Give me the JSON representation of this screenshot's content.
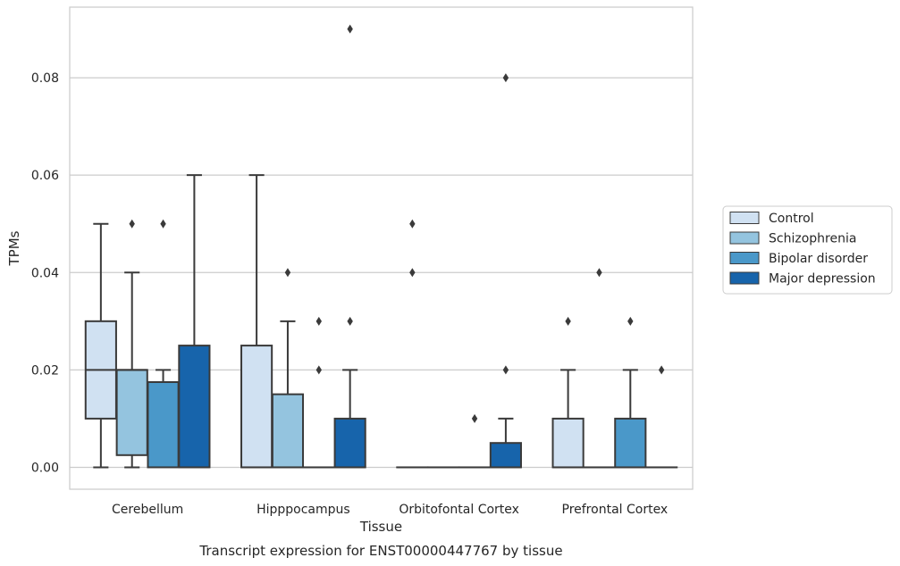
{
  "chart_data": {
    "type": "boxplot",
    "title": "Transcript expression for ENST00000447767 by tissue",
    "xlabel": "Tissue",
    "ylabel": "TPMs",
    "ylim": [
      -0.0045,
      0.0945
    ],
    "yticks": [
      "0.00",
      "0.02",
      "0.04",
      "0.06",
      "0.08"
    ],
    "ytick_values": [
      0,
      0.02,
      0.04,
      0.06,
      0.08
    ],
    "grid": "horizontal",
    "legend_position": "right",
    "categories": [
      "Cerebellum",
      "Hipppocampus",
      "Orbitofontal Cortex",
      "Prefrontal Cortex"
    ],
    "series": [
      {
        "name": "Control",
        "color": "#d0e1f2",
        "boxes": [
          {
            "q1": 0.01,
            "median": 0.02,
            "q3": 0.03,
            "whislo": 0.0,
            "whishi": 0.05,
            "fliers": []
          },
          {
            "q1": 0.0,
            "median": 0.0,
            "q3": 0.025,
            "whislo": 0.0,
            "whishi": 0.06,
            "fliers": []
          },
          {
            "q1": 0.0,
            "median": 0.0,
            "q3": 0.0,
            "whislo": 0.0,
            "whishi": 0.0,
            "fliers": [
              0.04,
              0.05
            ]
          },
          {
            "q1": 0.0,
            "median": 0.0,
            "q3": 0.01,
            "whislo": 0.0,
            "whishi": 0.02,
            "fliers": [
              0.03
            ]
          }
        ]
      },
      {
        "name": "Schizophrenia",
        "color": "#94c4df",
        "boxes": [
          {
            "q1": 0.0025,
            "median": 0.02,
            "q3": 0.02,
            "whislo": 0.0,
            "whishi": 0.04,
            "fliers": [
              0.05
            ]
          },
          {
            "q1": 0.0,
            "median": 0.0,
            "q3": 0.015,
            "whislo": 0.0,
            "whishi": 0.03,
            "fliers": [
              0.04
            ]
          },
          {
            "q1": 0.0,
            "median": 0.0,
            "q3": 0.0,
            "whislo": 0.0,
            "whishi": 0.0,
            "fliers": []
          },
          {
            "q1": 0.0,
            "median": 0.0,
            "q3": 0.0,
            "whislo": 0.0,
            "whishi": 0.0,
            "fliers": [
              0.04
            ]
          }
        ]
      },
      {
        "name": "Bipolar disorder",
        "color": "#4a98c9",
        "boxes": [
          {
            "q1": 0.0,
            "median": 0.0175,
            "q3": 0.0175,
            "whislo": 0.0,
            "whishi": 0.02,
            "fliers": [
              0.05
            ]
          },
          {
            "q1": 0.0,
            "median": 0.0,
            "q3": 0.0,
            "whislo": 0.0,
            "whishi": 0.0,
            "fliers": [
              0.02,
              0.03
            ]
          },
          {
            "q1": 0.0,
            "median": 0.0,
            "q3": 0.0,
            "whislo": 0.0,
            "whishi": 0.0,
            "fliers": [
              0.01
            ]
          },
          {
            "q1": 0.0,
            "median": 0.0,
            "q3": 0.01,
            "whislo": 0.0,
            "whishi": 0.02,
            "fliers": [
              0.03
            ]
          }
        ]
      },
      {
        "name": "Major depression",
        "color": "#1764ab",
        "boxes": [
          {
            "q1": 0.0,
            "median": 0.0,
            "q3": 0.025,
            "whislo": 0.0,
            "whishi": 0.06,
            "fliers": []
          },
          {
            "q1": 0.0,
            "median": 0.0,
            "q3": 0.01,
            "whislo": 0.0,
            "whishi": 0.02,
            "fliers": [
              0.03,
              0.09
            ]
          },
          {
            "q1": 0.0,
            "median": 0.0,
            "q3": 0.005,
            "whislo": 0.0,
            "whishi": 0.01,
            "fliers": [
              0.02,
              0.08
            ]
          },
          {
            "q1": 0.0,
            "median": 0.0,
            "q3": 0.0,
            "whislo": 0.0,
            "whishi": 0.0,
            "fliers": [
              0.02
            ]
          }
        ]
      }
    ]
  }
}
